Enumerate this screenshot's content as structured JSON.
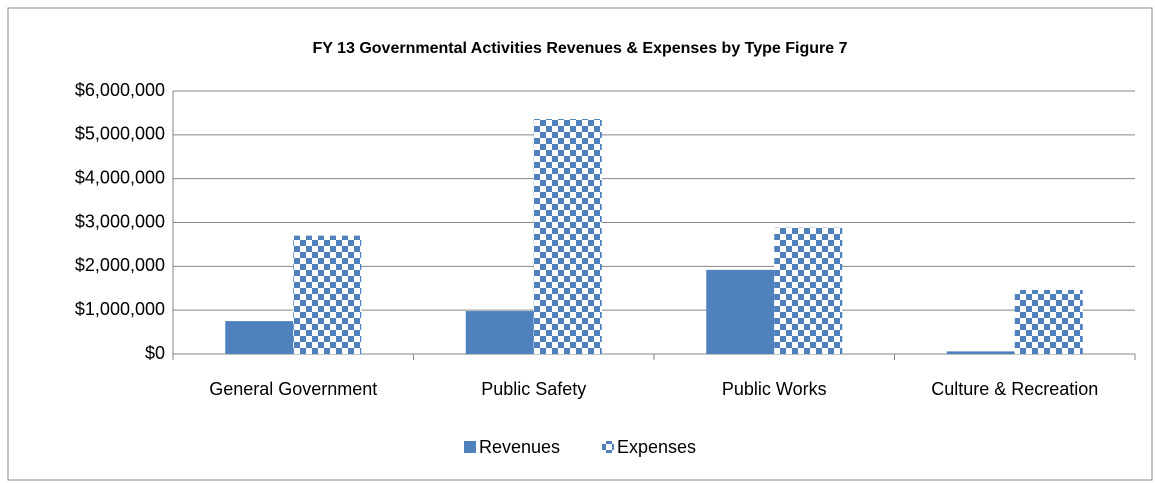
{
  "chart_data": {
    "type": "bar",
    "title": "FY 13 Governmental Activities Revenues & Expenses by Type   Figure 7",
    "categories": [
      "General Government",
      "Public Safety",
      "Public Works",
      "Culture & Recreation"
    ],
    "series": [
      {
        "name": "Revenues",
        "color": "#4f81bd",
        "pattern": "solid",
        "values": [
          750000,
          980000,
          1920000,
          60000
        ]
      },
      {
        "name": "Expenses",
        "color": "#4f81bd",
        "pattern": "checker",
        "values": [
          2700000,
          5360000,
          2880000,
          1460000
        ]
      }
    ],
    "ylim": [
      0,
      6000000
    ],
    "yticks": [
      {
        "value": 0,
        "label": "$0"
      },
      {
        "value": 1000000,
        "label": "$1,000,000"
      },
      {
        "value": 2000000,
        "label": "$2,000,000"
      },
      {
        "value": 3000000,
        "label": "$3,000,000"
      },
      {
        "value": 4000000,
        "label": "$4,000,000"
      },
      {
        "value": 5000000,
        "label": "$5,000,000"
      },
      {
        "value": 6000000,
        "label": "$6,000,000"
      }
    ],
    "grid": true,
    "legend": "bottom"
  }
}
